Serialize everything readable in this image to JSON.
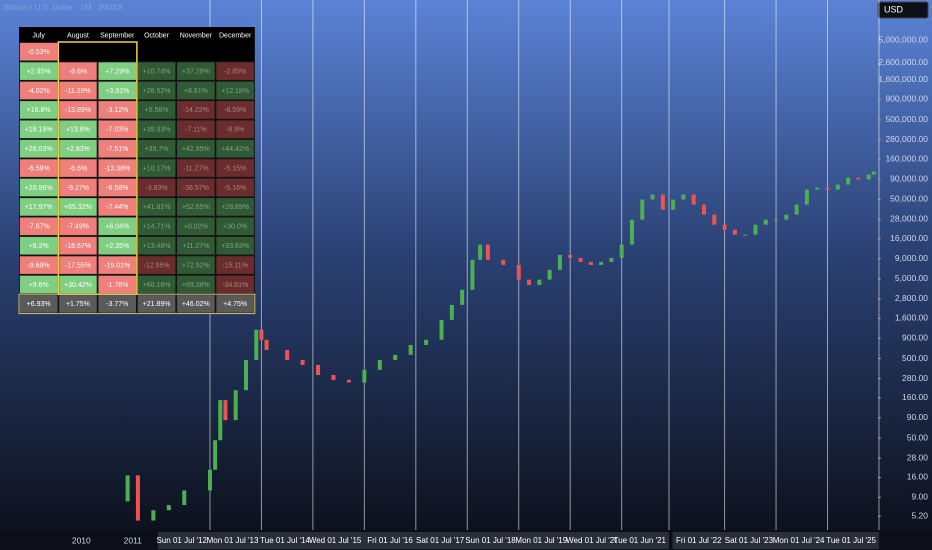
{
  "chart_data": {
    "type": "candlestick",
    "title": "Bitcoin / U.S. Dollar · 1M · INDEX",
    "currency": "USD",
    "x": [
      2010.75,
      2010.9,
      2011.1,
      2011.4,
      2011.7,
      2012.0,
      2012.5,
      2012.6,
      2012.7,
      2012.8,
      2013.0,
      2013.2,
      2013.4,
      2013.5,
      2013.6,
      2014.0,
      2014.3,
      2014.6,
      2014.9,
      2015.2,
      2015.5,
      2015.8,
      2016.1,
      2016.4,
      2016.7,
      2017.0,
      2017.2,
      2017.4,
      2017.6,
      2017.75,
      2017.9,
      2018.2,
      2018.5,
      2018.7,
      2018.9,
      2019.1,
      2019.3,
      2019.5,
      2019.7,
      2019.9,
      2020.1,
      2020.3,
      2020.5,
      2020.7,
      2020.9,
      2021.1,
      2021.3,
      2021.5,
      2021.7,
      2021.9,
      2022.1,
      2022.3,
      2022.5,
      2022.7,
      2022.9,
      2023.1,
      2023.3,
      2023.5,
      2023.7,
      2023.9,
      2024.1,
      2024.3,
      2024.5,
      2024.7,
      2024.9,
      2025.1,
      2025.3,
      2025.4
    ],
    "values": [
      8,
      17,
      4.6,
      6.2,
      7.2,
      11,
      20,
      47,
      150,
      84,
      200,
      480,
      1150,
      860,
      640,
      480,
      415,
      310,
      270,
      250,
      360,
      480,
      555,
      740,
      860,
      1530,
      2360,
      3650,
      8700,
      13500,
      8700,
      7500,
      4900,
      4200,
      4900,
      6500,
      10000,
      9200,
      8200,
      7500,
      8200,
      9200,
      13500,
      27800,
      49700,
      57400,
      37200,
      49700,
      57400,
      43000,
      32100,
      24000,
      20800,
      18000,
      18000,
      24000,
      27800,
      27800,
      32100,
      43000,
      66400,
      70300,
      66400,
      76700,
      94000,
      88700,
      102600,
      111700
    ],
    "up_color": "#4caf50",
    "down_color": "#ef5350",
    "log_scale": true,
    "xlim": [
      2008.42,
      2025.52
    ],
    "ylim": [
      3.5,
      16000000
    ],
    "xticks": [
      {
        "value": 2010,
        "label": "2010"
      },
      {
        "value": 2011,
        "label": "2011"
      }
    ],
    "highlighted_dates": [
      {
        "value": 2012.5,
        "label": "Sun 01 Jul '12"
      },
      {
        "value": 2013.5,
        "label": "Mon 01 Jul '13"
      },
      {
        "value": 2014.5,
        "label": "Tue 01 Jul '14"
      },
      {
        "value": 2015.5,
        "label": "Wed 01 Jul '15"
      },
      {
        "value": 2016.5,
        "label": "Fri 01 Jul '16"
      },
      {
        "value": 2017.5,
        "label": "Sat 01 Jul '17"
      },
      {
        "value": 2018.5,
        "label": "Sun 01 Jul '18"
      },
      {
        "value": 2019.5,
        "label": "Mon 01 Jul '19"
      },
      {
        "value": 2020.5,
        "label": "Wed 01 Jul '20"
      },
      {
        "value": 2021.42,
        "label": "Tue 01 Jun '21"
      },
      {
        "value": 2022.5,
        "label": "Fri 01 Jul '22"
      },
      {
        "value": 2023.5,
        "label": "Sat 01 Jul '23"
      },
      {
        "value": 2024.5,
        "label": "Mon 01 Jul '24"
      },
      {
        "value": 2025.5,
        "label": "Tue 01 Jul '25"
      }
    ],
    "yticks": [
      {
        "value": 5000000,
        "label": "5,000,000.00"
      },
      {
        "value": 2600000,
        "label": "2,600,000.00"
      },
      {
        "value": 1600000,
        "label": "1,600,000.00"
      },
      {
        "value": 900000,
        "label": "900,000.00"
      },
      {
        "value": 500000,
        "label": "500,000.00"
      },
      {
        "value": 280000,
        "label": "280,000.00"
      },
      {
        "value": 160000,
        "label": "160,000.00"
      },
      {
        "value": 90000,
        "label": "90,000.00"
      },
      {
        "value": 50000,
        "label": "50,000.00"
      },
      {
        "value": 28000,
        "label": "28,000.00"
      },
      {
        "value": 16000,
        "label": "16,000.00"
      },
      {
        "value": 9000,
        "label": "9,000.00"
      },
      {
        "value": 5000,
        "label": "5,000.00"
      },
      {
        "value": 2800,
        "label": "2,800.00"
      },
      {
        "value": 1600,
        "label": "1,600.00"
      },
      {
        "value": 900,
        "label": "900.00"
      },
      {
        "value": 500,
        "label": "500.00"
      },
      {
        "value": 280,
        "label": "280.00"
      },
      {
        "value": 160,
        "label": "160.00"
      },
      {
        "value": 90,
        "label": "90.00"
      },
      {
        "value": 50,
        "label": "50.00"
      },
      {
        "value": 28,
        "label": "28.00"
      },
      {
        "value": 16,
        "label": "16.00"
      },
      {
        "value": 9,
        "label": "9.00"
      },
      {
        "value": 5.2,
        "label": "5.20"
      }
    ]
  },
  "table": {
    "header": [
      "July",
      "August",
      "September",
      "October",
      "November",
      "December"
    ],
    "rows": [
      [
        "-0.53%"
      ],
      [
        "+2.95%",
        "-8.6%",
        "+7.29%",
        "+10.74%",
        "+37.29%",
        "-2.85%"
      ],
      [
        "-4.02%",
        "-11.29%",
        "+3.91%",
        "+28.52%",
        "+8.81%",
        "+12.18%"
      ],
      [
        "+16.8%",
        "-13.89%",
        "-3.12%",
        "+5.56%",
        "-14.22%",
        "-8.59%"
      ],
      [
        "+18.19%",
        "+13.8%",
        "-7.03%",
        "+39.93%",
        "-7.11%",
        "-8.9%"
      ],
      [
        "+26.03%",
        "+2.83%",
        "-7.51%",
        "+39.7%",
        "+42.95%",
        "+44.42%"
      ],
      [
        "-6.59%",
        "-6.6%",
        "-13.38%",
        "+10.17%",
        "-11.27%",
        "-5.15%"
      ],
      [
        "+20.96%",
        "-9.27%",
        "-6.58%",
        "-3.83%",
        "-36.57%",
        "-5.16%"
      ],
      [
        "+17.97%",
        "+65.32%",
        "-7.44%",
        "+41.81%",
        "+52.65%",
        "+28.69%"
      ],
      [
        "-7.67%",
        "-7.49%",
        "+6.04%",
        "+14.71%",
        "+0.02%",
        "+30.0%"
      ],
      [
        "+8.2%",
        "-18.67%",
        "+2.35%",
        "+13.48%",
        "+11.27%",
        "+33.63%"
      ],
      [
        "-9.69%",
        "-17.55%",
        "-19.01%",
        "-12.95%",
        "+72.92%",
        "-15.11%"
      ],
      [
        "+9.6%",
        "+30.42%",
        "-1.76%",
        "+60.18%",
        "+69.38%",
        "-34.81%"
      ]
    ],
    "summary": [
      "+6.93%",
      "+1.75%",
      "-3.77%",
      "+21.89%",
      "+46.02%",
      "+4.75%"
    ]
  }
}
